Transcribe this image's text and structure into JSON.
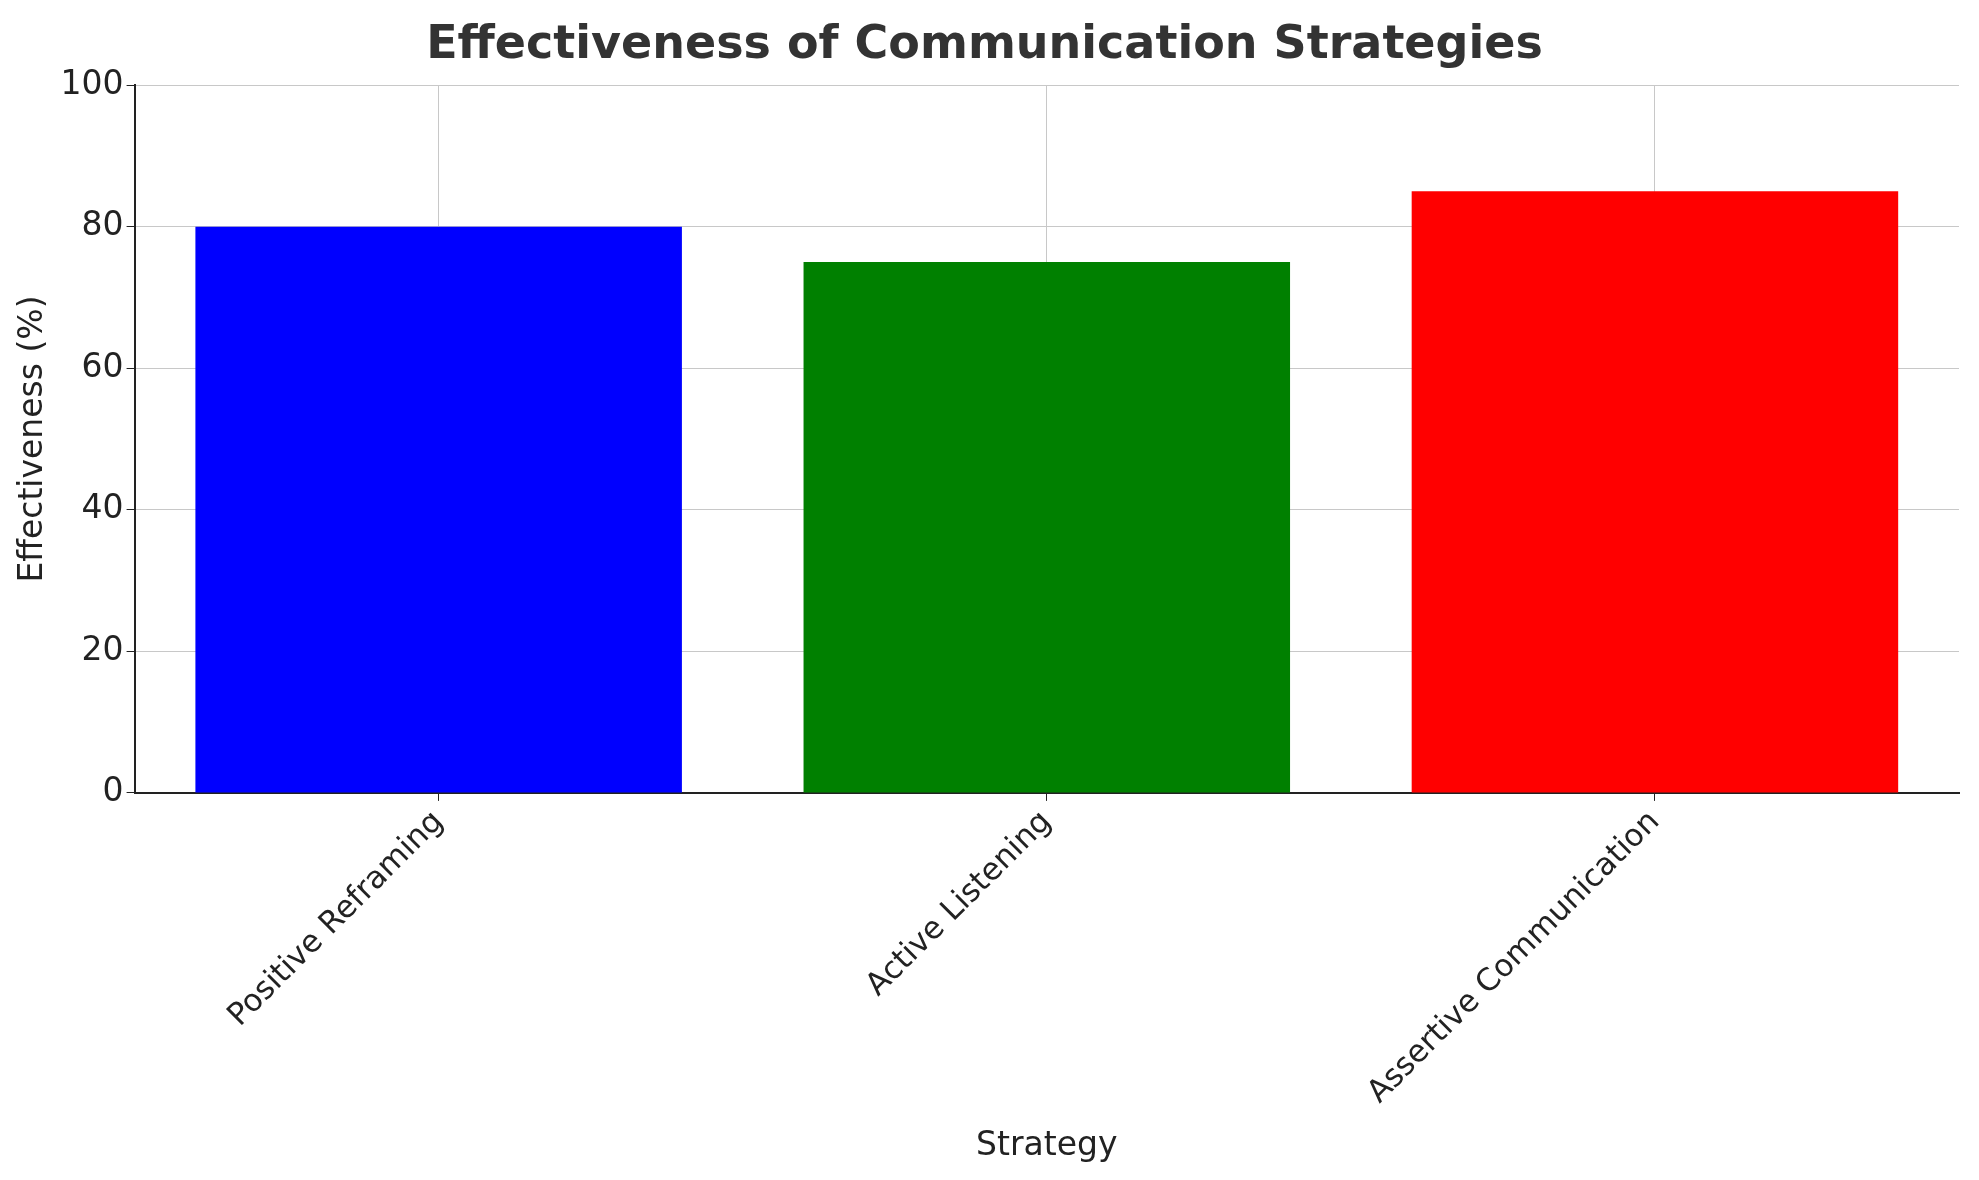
{
  "chart_data": {
    "type": "bar",
    "title": "Effectiveness of Communication Strategies",
    "xlabel": "Strategy",
    "ylabel": "Effectiveness (%)",
    "categories": [
      "Positive Reframing",
      "Active Listening",
      "Assertive Communication"
    ],
    "values": [
      80,
      75,
      85
    ],
    "colors": [
      "#0000ff",
      "#008000",
      "#ff0000"
    ],
    "ylim": [
      0,
      100
    ],
    "yticks": [
      0,
      20,
      40,
      60,
      80,
      100
    ],
    "grid": true
  }
}
